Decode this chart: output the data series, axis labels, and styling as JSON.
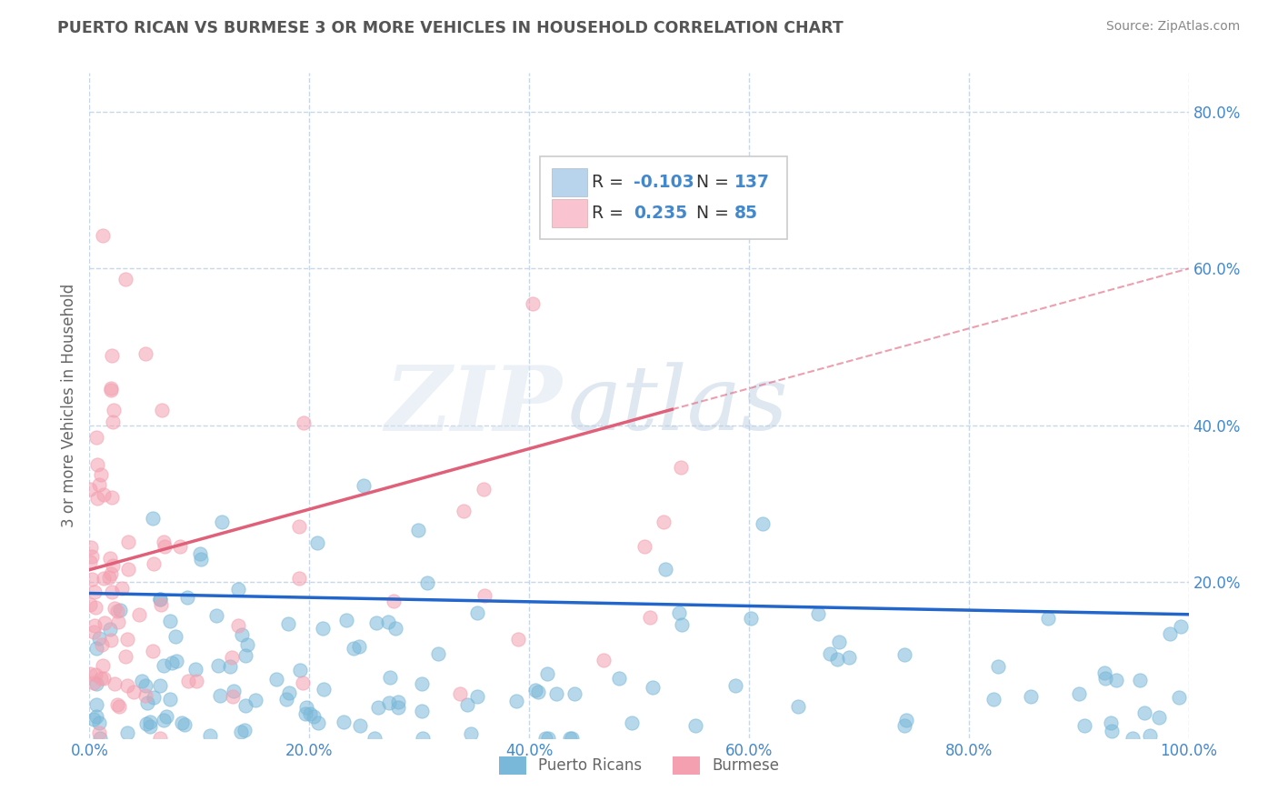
{
  "title": "PUERTO RICAN VS BURMESE 3 OR MORE VEHICLES IN HOUSEHOLD CORRELATION CHART",
  "source": "Source: ZipAtlas.com",
  "ylabel": "3 or more Vehicles in Household",
  "xlim": [
    0.0,
    1.0
  ],
  "ylim": [
    0.0,
    0.85
  ],
  "xtick_labels": [
    "0.0%",
    "20.0%",
    "40.0%",
    "60.0%",
    "80.0%",
    "100.0%"
  ],
  "ytick_labels": [
    "20.0%",
    "40.0%",
    "60.0%",
    "80.0%"
  ],
  "ytick_values": [
    0.2,
    0.4,
    0.6,
    0.8
  ],
  "xtick_values": [
    0.0,
    0.2,
    0.4,
    0.6,
    0.8,
    1.0
  ],
  "pr_R": -0.103,
  "pr_N": 137,
  "bur_R": 0.235,
  "bur_N": 85,
  "pr_color": "#7ab8d9",
  "bur_color": "#f4a0b0",
  "pr_line_color": "#2266cc",
  "bur_line_color": "#e0607a",
  "legend_pr_fill": "#b8d4ec",
  "legend_bur_fill": "#f9c4cf",
  "watermark_zip": "ZIP",
  "watermark_atlas": "atlas",
  "background_color": "#ffffff",
  "grid_color": "#c8d8e8",
  "title_color": "#555555",
  "label_color": "#666666",
  "tick_color": "#4488cc",
  "source_color": "#888888",
  "legend_text_color": "#4488cc",
  "legend_label_color": "#333333",
  "scatter_alpha": 0.55,
  "scatter_size": 120
}
